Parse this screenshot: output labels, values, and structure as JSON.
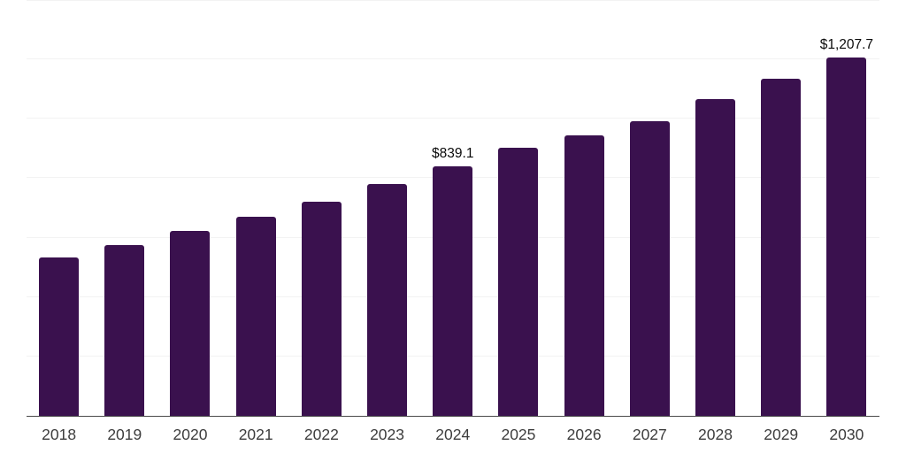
{
  "chart_data": {
    "type": "bar",
    "title": "",
    "xlabel": "",
    "ylabel": "",
    "categories": [
      "2018",
      "2019",
      "2020",
      "2021",
      "2022",
      "2023",
      "2024",
      "2025",
      "2026",
      "2027",
      "2028",
      "2029",
      "2030"
    ],
    "values": [
      533,
      575,
      622,
      670,
      721,
      780,
      839.1,
      903,
      943,
      992,
      1066,
      1135,
      1207.7
    ],
    "data_labels": {
      "2024": "$839.1",
      "2030": "$1,207.7"
    },
    "ylim": [
      0,
      1400
    ],
    "grid_interval": 200,
    "grid": "horizontal-only",
    "legend": "none",
    "y_axis_ticks_visible": false,
    "colors": {
      "bar": "#3A114E",
      "axis_line": "#4a4a4a",
      "gridline": "#f3f3f3",
      "tick_label": "#3d3d3d",
      "data_label": "#0a0a0a",
      "background": "#ffffff"
    }
  }
}
